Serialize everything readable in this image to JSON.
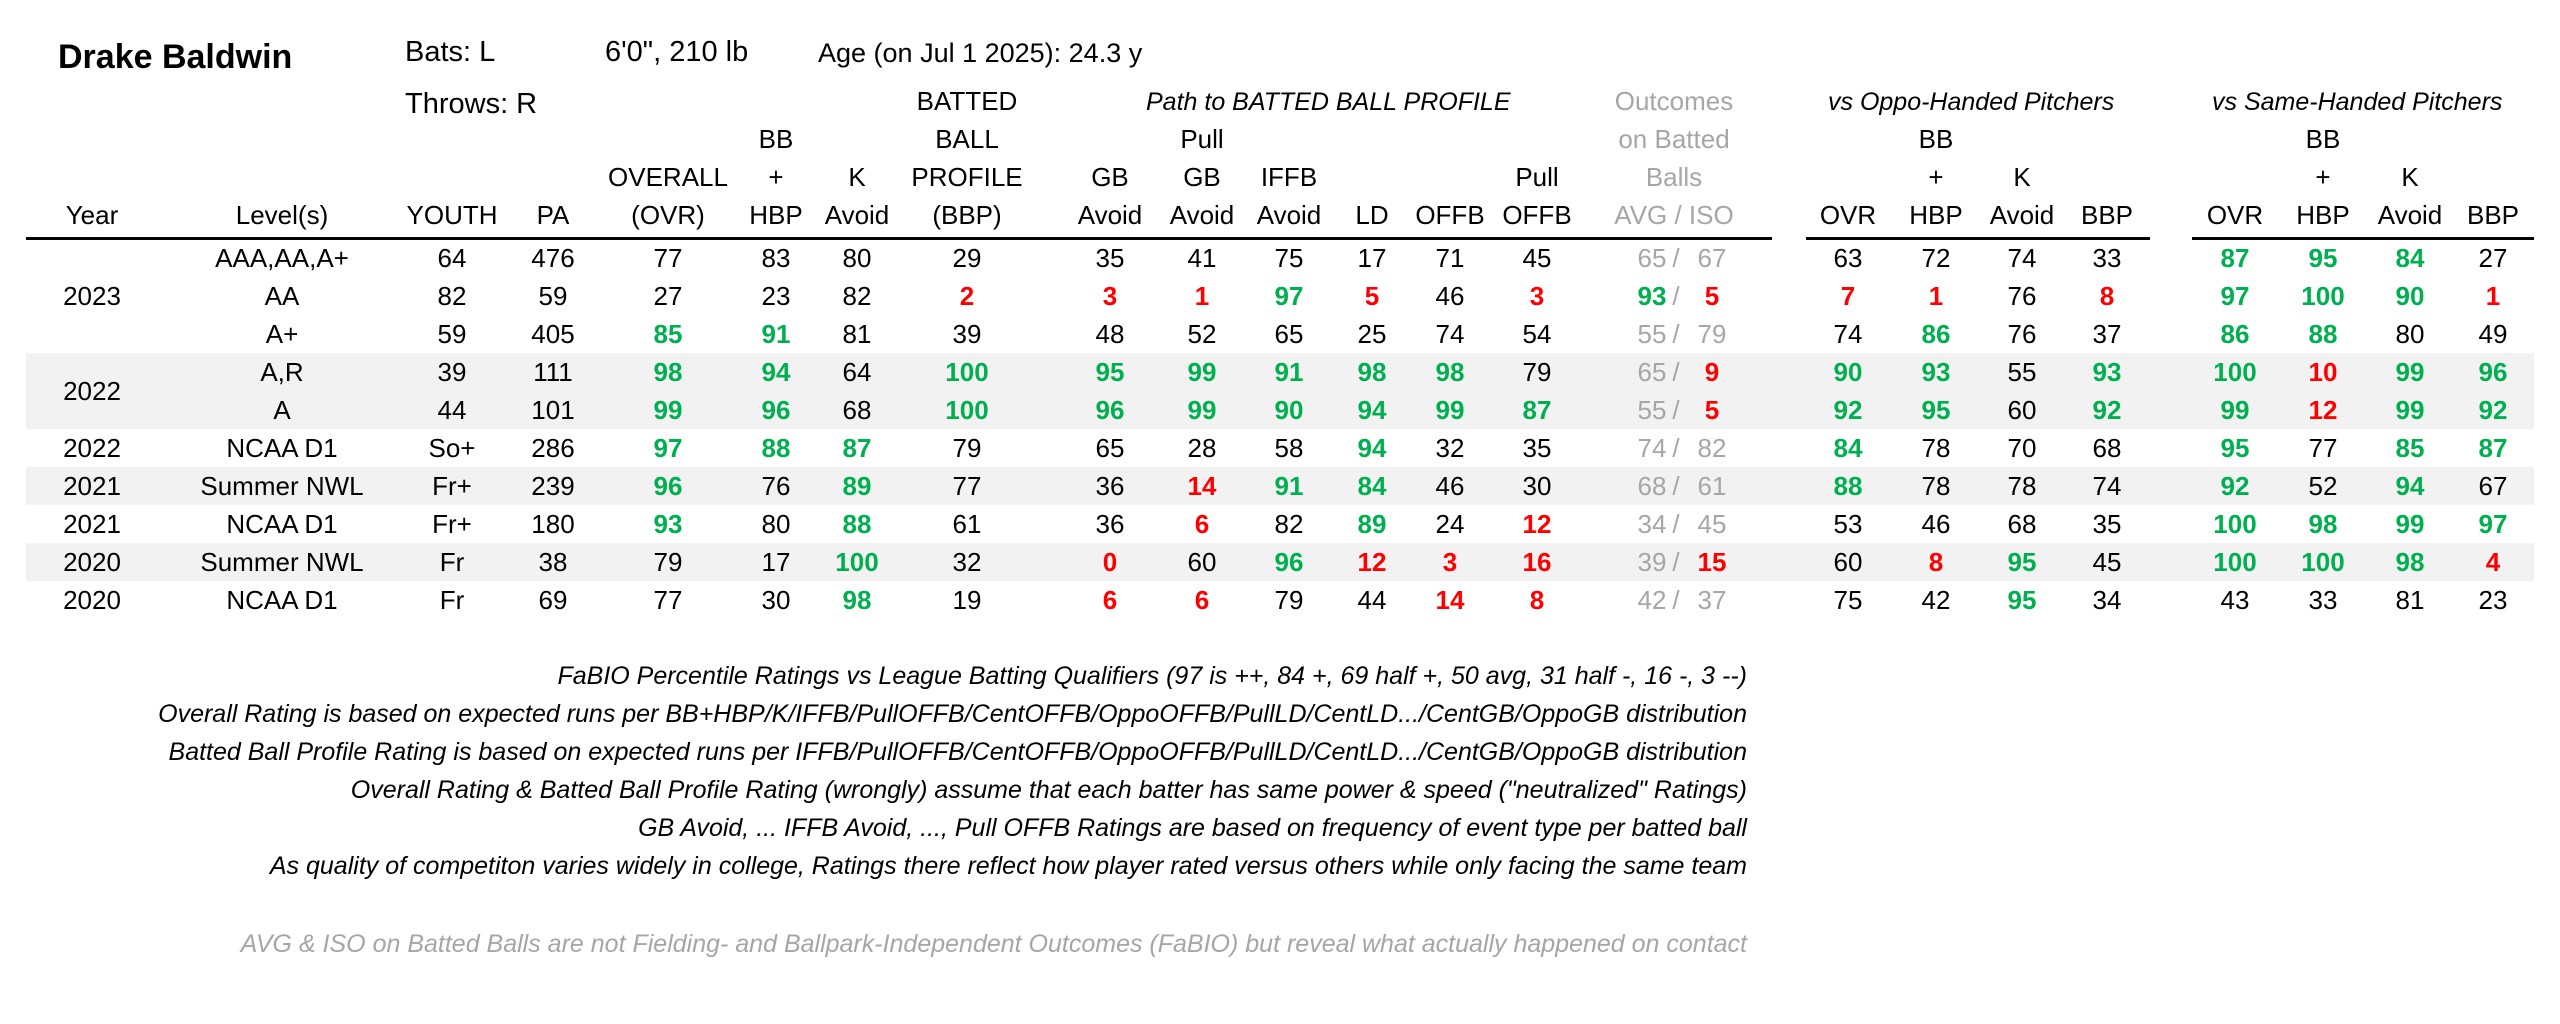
{
  "player": {
    "name": "Drake Baldwin",
    "bats": "Bats: L",
    "throws": "Throws: R",
    "size": "6'0\", 210 lb",
    "age": "Age (on Jul 1 2025): 24.3 y"
  },
  "group_headers": {
    "path": "Path to BATTED BALL PROFILE",
    "oppo": "vs Oppo-Handed Pitchers",
    "same": "vs Same-Handed Pitchers"
  },
  "columns": {
    "year": [
      "",
      "",
      "",
      "Year"
    ],
    "level": [
      "",
      "",
      "",
      "Level(s)"
    ],
    "youth": [
      "",
      "",
      "",
      "YOUTH"
    ],
    "pa": [
      "",
      "",
      "",
      "PA"
    ],
    "ovr": [
      "",
      "",
      "OVERALL",
      "(OVR)"
    ],
    "bbhbp": [
      "",
      "BB",
      "+",
      "HBP"
    ],
    "kavoid": [
      "",
      "",
      "K",
      "Avoid"
    ],
    "bbp": [
      "BATTED",
      "BALL",
      "PROFILE",
      "(BBP)"
    ],
    "gbavoid": [
      "",
      "",
      "GB",
      "Avoid"
    ],
    "pullgb": [
      "",
      "Pull",
      "GB",
      "Avoid"
    ],
    "iffb": [
      "",
      "",
      "IFFB",
      "Avoid"
    ],
    "ld": [
      "",
      "",
      "",
      "LD"
    ],
    "offb": [
      "",
      "",
      "",
      "OFFB"
    ],
    "pulloffb": [
      "",
      "",
      "Pull",
      "OFFB"
    ],
    "outcomes": [
      "Outcomes",
      "on Batted",
      "Balls",
      "AVG  /  ISO"
    ],
    "o_ovr": [
      "",
      "",
      "",
      "OVR"
    ],
    "o_hbp": [
      "",
      "BB",
      "+",
      "HBP"
    ],
    "o_k": [
      "",
      "",
      "K",
      "Avoid"
    ],
    "o_bbp": [
      "",
      "",
      "",
      "BBP"
    ],
    "s_ovr": [
      "",
      "",
      "",
      "OVR"
    ],
    "s_hbp": [
      "",
      "BB",
      "+",
      "HBP"
    ],
    "s_k": [
      "",
      "",
      "K",
      "Avoid"
    ],
    "s_bbp": [
      "",
      "",
      "",
      "BBP"
    ]
  },
  "rows": [
    {
      "year": "",
      "level": "AAA,AA,A+",
      "c": [
        "64",
        "476",
        "77",
        "83",
        "80",
        "29",
        "35",
        "41",
        "75",
        "17",
        "71",
        "45"
      ],
      "avg": "65",
      "iso": "67",
      "oppo": [
        "63",
        "72",
        "74",
        "33"
      ],
      "same": [
        "87",
        "95",
        "84",
        "27"
      ]
    },
    {
      "year": "2023",
      "level": "AA",
      "c": [
        "82",
        "59",
        "27",
        "23",
        "82",
        "2",
        "3",
        "1",
        "97",
        "5",
        "46",
        "3"
      ],
      "avg": "93",
      "iso": "5",
      "oppo": [
        "7",
        "1",
        "76",
        "8"
      ],
      "same": [
        "97",
        "100",
        "90",
        "1"
      ]
    },
    {
      "year": "",
      "level": "A+",
      "c": [
        "59",
        "405",
        "85",
        "91",
        "81",
        "39",
        "48",
        "52",
        "65",
        "25",
        "74",
        "54"
      ],
      "avg": "55",
      "iso": "79",
      "oppo": [
        "74",
        "86",
        "76",
        "37"
      ],
      "same": [
        "86",
        "88",
        "80",
        "49"
      ]
    },
    {
      "year": "",
      "level": "A,R",
      "c": [
        "39",
        "111",
        "98",
        "94",
        "64",
        "100",
        "95",
        "99",
        "91",
        "98",
        "98",
        "79"
      ],
      "avg": "65",
      "iso": "9",
      "oppo": [
        "90",
        "93",
        "55",
        "93"
      ],
      "same": [
        "100",
        "10",
        "99",
        "96"
      ]
    },
    {
      "year": "2022",
      "level": "A",
      "c": [
        "44",
        "101",
        "99",
        "96",
        "68",
        "100",
        "96",
        "99",
        "90",
        "94",
        "99",
        "87"
      ],
      "avg": "55",
      "iso": "5",
      "oppo": [
        "92",
        "95",
        "60",
        "92"
      ],
      "same": [
        "99",
        "12",
        "99",
        "92"
      ]
    },
    {
      "year": "2022",
      "level": "NCAA D1",
      "c": [
        "So+",
        "286",
        "97",
        "88",
        "87",
        "79",
        "65",
        "28",
        "58",
        "94",
        "32",
        "35"
      ],
      "avg": "74",
      "iso": "82",
      "oppo": [
        "84",
        "78",
        "70",
        "68"
      ],
      "same": [
        "95",
        "77",
        "85",
        "87"
      ]
    },
    {
      "year": "2021",
      "level": "Summer NWL",
      "c": [
        "Fr+",
        "239",
        "96",
        "76",
        "89",
        "77",
        "36",
        "14",
        "91",
        "84",
        "46",
        "30"
      ],
      "avg": "68",
      "iso": "61",
      "oppo": [
        "88",
        "78",
        "78",
        "74"
      ],
      "same": [
        "92",
        "52",
        "94",
        "67"
      ]
    },
    {
      "year": "2021",
      "level": "NCAA D1",
      "c": [
        "Fr+",
        "180",
        "93",
        "80",
        "88",
        "61",
        "36",
        "6",
        "82",
        "89",
        "24",
        "12"
      ],
      "avg": "34",
      "iso": "45",
      "oppo": [
        "53",
        "46",
        "68",
        "35"
      ],
      "same": [
        "100",
        "98",
        "99",
        "97"
      ]
    },
    {
      "year": "2020",
      "level": "Summer NWL",
      "c": [
        "Fr",
        "38",
        "79",
        "17",
        "100",
        "32",
        "0",
        "60",
        "96",
        "12",
        "3",
        "16"
      ],
      "avg": "39",
      "iso": "15",
      "oppo": [
        "60",
        "8",
        "95",
        "45"
      ],
      "same": [
        "100",
        "100",
        "98",
        "4"
      ]
    },
    {
      "year": "2020",
      "level": "NCAA D1",
      "c": [
        "Fr",
        "69",
        "77",
        "30",
        "98",
        "19",
        "6",
        "6",
        "79",
        "44",
        "14",
        "8"
      ],
      "avg": "42",
      "iso": "37",
      "oppo": [
        "75",
        "42",
        "95",
        "34"
      ],
      "same": [
        "43",
        "33",
        "81",
        "23"
      ]
    }
  ],
  "notes": [
    "FaBIO Percentile Ratings vs League Batting Qualifiers (97 is ++, 84 +, 69 half +, 50 avg, 31 half -, 16 -, 3 --)",
    "Overall Rating is based on expected runs per BB+HBP/K/IFFB/PullOFFB/CentOFFB/OppoOFFB/PullLD/CentLD.../CentGB/OppoGB distribution",
    "Batted Ball Profile Rating is based on expected runs per IFFB/PullOFFB/CentOFFB/OppoOFFB/PullLD/CentLD.../CentGB/OppoGB distribution",
    "Overall Rating & Batted Ball Profile Rating (wrongly) assume that each batter has same power & speed (\"neutralized\" Ratings)",
    "GB Avoid, ... IFFB Avoid, ..., Pull OFFB Ratings are based on frequency of event type per batted ball",
    "As quality of competiton varies widely in college, Ratings there reflect how player rated versus others while only facing the same team"
  ],
  "footnote": "AVG & ISO on Batted Balls are not Fielding- and Ballpark-Independent Outcomes (FaBIO) but reveal what actually happened on contact",
  "colors": {
    "high": "#00b050",
    "low": "#ff0000",
    "muted": "#a6a6a6",
    "band": "#f2f2f2"
  }
}
